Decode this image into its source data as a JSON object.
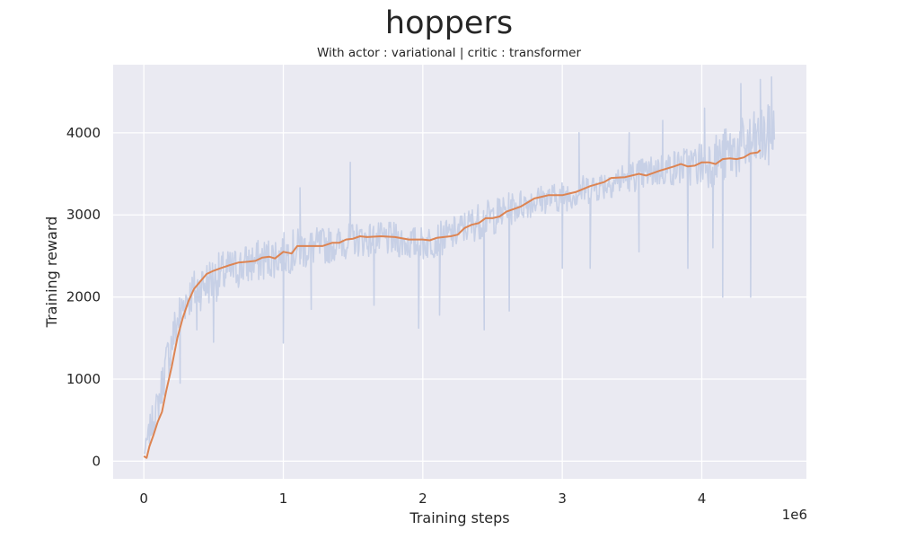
{
  "chart_data": {
    "type": "line",
    "title": "hoppers",
    "subtitle": "With actor : variational | critic : transformer",
    "xlabel": "Training steps",
    "ylabel": "Training reward",
    "x_offset_label": "1e6",
    "xlim": [
      -0.22,
      4.75
    ],
    "ylim": [
      -215,
      4830
    ],
    "x_ticks": [
      0,
      1,
      2,
      3,
      4
    ],
    "y_ticks": [
      0,
      1000,
      2000,
      3000,
      4000
    ],
    "grid": true,
    "colors": {
      "background": "#eaeaf2",
      "grid": "#ffffff",
      "raw_series": "#c7d0e6",
      "smoothed_series": "#dd8452"
    },
    "series": [
      {
        "role": "raw",
        "band": [
          [
            0.0,
            20,
            150
          ],
          [
            0.05,
            150,
            700
          ],
          [
            0.1,
            350,
            1000
          ],
          [
            0.15,
            700,
            1500
          ],
          [
            0.2,
            1000,
            1900
          ],
          [
            0.25,
            1300,
            2200
          ],
          [
            0.3,
            1600,
            2350
          ],
          [
            0.4,
            1700,
            2550
          ],
          [
            0.5,
            1800,
            2650
          ],
          [
            0.6,
            1900,
            2700
          ],
          [
            0.7,
            2000,
            2750
          ],
          [
            0.8,
            2050,
            2800
          ],
          [
            0.9,
            2100,
            2850
          ],
          [
            1.0,
            2150,
            2900
          ],
          [
            1.1,
            2200,
            2950
          ],
          [
            1.2,
            2250,
            2950
          ],
          [
            1.3,
            2300,
            2950
          ],
          [
            1.4,
            2350,
            2950
          ],
          [
            1.5,
            2400,
            3000
          ],
          [
            1.6,
            2400,
            3000
          ],
          [
            1.7,
            2400,
            3000
          ],
          [
            1.8,
            2400,
            3000
          ],
          [
            1.9,
            2350,
            2950
          ],
          [
            2.0,
            2350,
            2950
          ],
          [
            2.1,
            2400,
            3000
          ],
          [
            2.2,
            2450,
            3050
          ],
          [
            2.3,
            2550,
            3150
          ],
          [
            2.4,
            2600,
            3250
          ],
          [
            2.5,
            2650,
            3300
          ],
          [
            2.6,
            2750,
            3350
          ],
          [
            2.7,
            2850,
            3400
          ],
          [
            2.8,
            2900,
            3450
          ],
          [
            2.9,
            2950,
            3450
          ],
          [
            3.0,
            2950,
            3500
          ],
          [
            3.1,
            3000,
            3550
          ],
          [
            3.2,
            3050,
            3600
          ],
          [
            3.3,
            3100,
            3650
          ],
          [
            3.4,
            3150,
            3700
          ],
          [
            3.5,
            3200,
            3750
          ],
          [
            3.6,
            3200,
            3800
          ],
          [
            3.7,
            3250,
            3850
          ],
          [
            3.8,
            3250,
            3900
          ],
          [
            3.9,
            3250,
            3950
          ],
          [
            4.0,
            3200,
            4050
          ],
          [
            4.1,
            3200,
            4150
          ],
          [
            4.2,
            3250,
            4250
          ],
          [
            4.3,
            3300,
            4350
          ],
          [
            4.4,
            3350,
            4450
          ],
          [
            4.52,
            3400,
            4550
          ]
        ],
        "spikes": [
          [
            0.26,
            950
          ],
          [
            0.38,
            1600
          ],
          [
            0.5,
            1450
          ],
          [
            1.0,
            1440
          ],
          [
            1.12,
            3330
          ],
          [
            1.2,
            1850
          ],
          [
            1.48,
            3640
          ],
          [
            1.65,
            1900
          ],
          [
            1.97,
            1620
          ],
          [
            2.12,
            1780
          ],
          [
            2.44,
            1600
          ],
          [
            2.62,
            1830
          ],
          [
            3.0,
            2350
          ],
          [
            3.12,
            4000
          ],
          [
            3.2,
            2350
          ],
          [
            3.48,
            4000
          ],
          [
            3.55,
            2550
          ],
          [
            3.72,
            4150
          ],
          [
            3.9,
            2350
          ],
          [
            4.02,
            4300
          ],
          [
            4.08,
            2600
          ],
          [
            4.15,
            2000
          ],
          [
            4.28,
            4600
          ],
          [
            4.35,
            2000
          ],
          [
            4.42,
            4650
          ],
          [
            4.5,
            4680
          ]
        ]
      },
      {
        "role": "smoothed",
        "points": [
          [
            0.0,
            60
          ],
          [
            0.02,
            40
          ],
          [
            0.04,
            180
          ],
          [
            0.07,
            320
          ],
          [
            0.1,
            480
          ],
          [
            0.13,
            600
          ],
          [
            0.16,
            850
          ],
          [
            0.2,
            1150
          ],
          [
            0.24,
            1500
          ],
          [
            0.28,
            1750
          ],
          [
            0.32,
            1950
          ],
          [
            0.36,
            2100
          ],
          [
            0.4,
            2180
          ],
          [
            0.45,
            2280
          ],
          [
            0.5,
            2320
          ],
          [
            0.55,
            2350
          ],
          [
            0.6,
            2380
          ],
          [
            0.68,
            2420
          ],
          [
            0.75,
            2430
          ],
          [
            0.8,
            2440
          ],
          [
            0.85,
            2480
          ],
          [
            0.9,
            2490
          ],
          [
            0.94,
            2470
          ],
          [
            1.0,
            2550
          ],
          [
            1.06,
            2530
          ],
          [
            1.1,
            2620
          ],
          [
            1.2,
            2620
          ],
          [
            1.28,
            2620
          ],
          [
            1.35,
            2660
          ],
          [
            1.4,
            2660
          ],
          [
            1.45,
            2700
          ],
          [
            1.5,
            2710
          ],
          [
            1.55,
            2740
          ],
          [
            1.6,
            2730
          ],
          [
            1.7,
            2740
          ],
          [
            1.8,
            2730
          ],
          [
            1.9,
            2700
          ],
          [
            2.0,
            2700
          ],
          [
            2.05,
            2690
          ],
          [
            2.1,
            2720
          ],
          [
            2.2,
            2740
          ],
          [
            2.25,
            2760
          ],
          [
            2.3,
            2840
          ],
          [
            2.35,
            2880
          ],
          [
            2.4,
            2900
          ],
          [
            2.45,
            2960
          ],
          [
            2.5,
            2960
          ],
          [
            2.55,
            2980
          ],
          [
            2.6,
            3040
          ],
          [
            2.7,
            3100
          ],
          [
            2.8,
            3200
          ],
          [
            2.85,
            3220
          ],
          [
            2.9,
            3240
          ],
          [
            3.0,
            3240
          ],
          [
            3.1,
            3280
          ],
          [
            3.2,
            3350
          ],
          [
            3.3,
            3400
          ],
          [
            3.35,
            3450
          ],
          [
            3.45,
            3460
          ],
          [
            3.55,
            3500
          ],
          [
            3.6,
            3480
          ],
          [
            3.7,
            3540
          ],
          [
            3.8,
            3590
          ],
          [
            3.85,
            3620
          ],
          [
            3.9,
            3590
          ],
          [
            3.95,
            3600
          ],
          [
            4.0,
            3640
          ],
          [
            4.05,
            3640
          ],
          [
            4.1,
            3620
          ],
          [
            4.15,
            3680
          ],
          [
            4.2,
            3690
          ],
          [
            4.25,
            3680
          ],
          [
            4.3,
            3700
          ],
          [
            4.35,
            3750
          ],
          [
            4.4,
            3760
          ],
          [
            4.42,
            3790
          ]
        ]
      }
    ]
  }
}
